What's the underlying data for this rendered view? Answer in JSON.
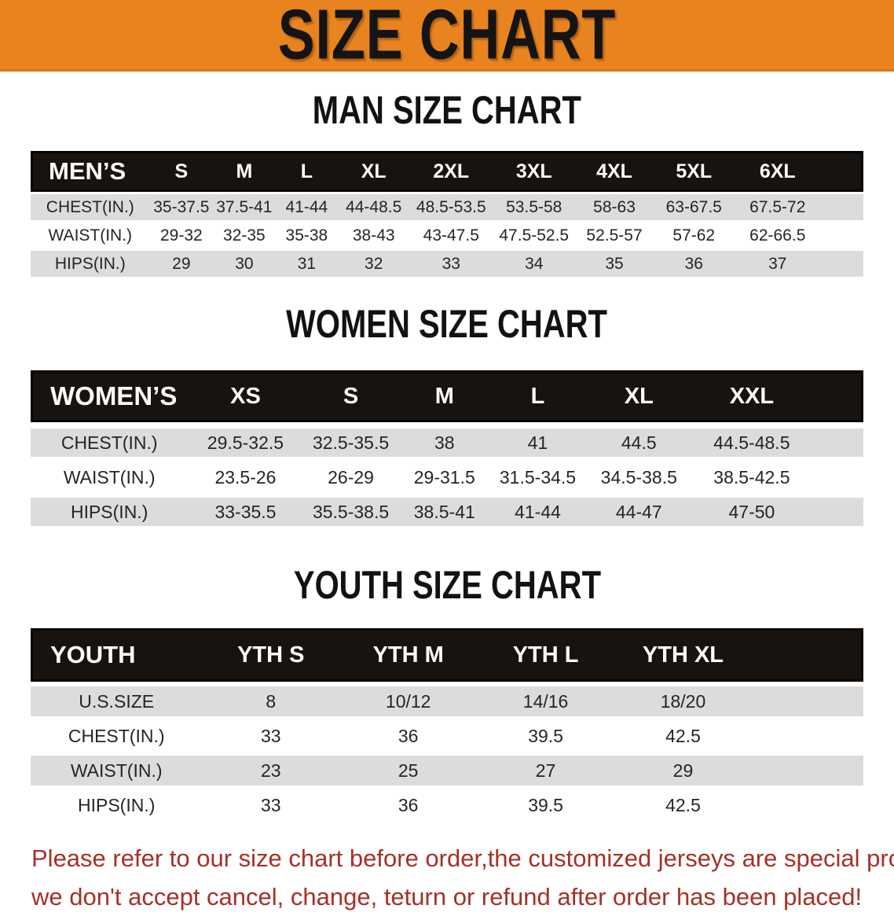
{
  "banner": {
    "title": "SIZE CHART",
    "bg_color": "#e8831f",
    "title_color": "#141414"
  },
  "men": {
    "title": "MAN SIZE CHART",
    "header": [
      "MEN’S",
      "S",
      "M",
      "L",
      "XL",
      "2XL",
      "3XL",
      "4XL",
      "5XL",
      "6XL"
    ],
    "rows": [
      [
        "CHEST(IN.)",
        "35-37.5",
        "37.5-41",
        "41-44",
        "44-48.5",
        "48.5-53.5",
        "53.5-58",
        "58-63",
        "63-67.5",
        "67.5-72"
      ],
      [
        "WAIST(IN.)",
        "29-32",
        "32-35",
        "35-38",
        "38-43",
        "43-47.5",
        "47.5-52.5",
        "52.5-57",
        "57-62",
        "62-66.5"
      ],
      [
        "HIPS(IN.)",
        "29",
        "30",
        "31",
        "32",
        "33",
        "34",
        "35",
        "36",
        "37"
      ]
    ]
  },
  "women": {
    "title": "WOMEN SIZE CHART",
    "header": [
      "WOMEN’S",
      "XS",
      "S",
      "M",
      "L",
      "XL",
      "XXL"
    ],
    "rows": [
      [
        "CHEST(IN.)",
        "29.5-32.5",
        "32.5-35.5",
        "38",
        "41",
        "44.5",
        "44.5-48.5"
      ],
      [
        "WAIST(IN.)",
        "23.5-26",
        "26-29",
        "29-31.5",
        "31.5-34.5",
        "34.5-38.5",
        "38.5-42.5"
      ],
      [
        "HIPS(IN.)",
        "33-35.5",
        "35.5-38.5",
        "38.5-41",
        "41-44",
        "44-47",
        "47-50"
      ]
    ]
  },
  "youth": {
    "title": "YOUTH SIZE CHART",
    "header": [
      "YOUTH",
      "YTH S",
      "YTH M",
      "YTH L",
      "YTH XL"
    ],
    "rows": [
      [
        "U.S.SIZE",
        "8",
        "10/12",
        "14/16",
        "18/20"
      ],
      [
        "CHEST(IN.)",
        "33",
        "36",
        "39.5",
        "42.5"
      ],
      [
        "WAIST(IN.)",
        "23",
        "25",
        "27",
        "29"
      ],
      [
        "HIPS(IN.)",
        "33",
        "36",
        "39.5",
        "42.5"
      ]
    ]
  },
  "notice": {
    "line1": "Please refer to our size chart before order,the customized jerseys are special products,",
    "line2": "we don't accept cancel, change, teturn or refund after order has been placed!",
    "text_color": "#a63028"
  },
  "table_colors": {
    "header_band": "#18130f",
    "header_text": "#ffffff",
    "shaded_row": "#dcdcdc",
    "plain_row": "#ffffff"
  }
}
